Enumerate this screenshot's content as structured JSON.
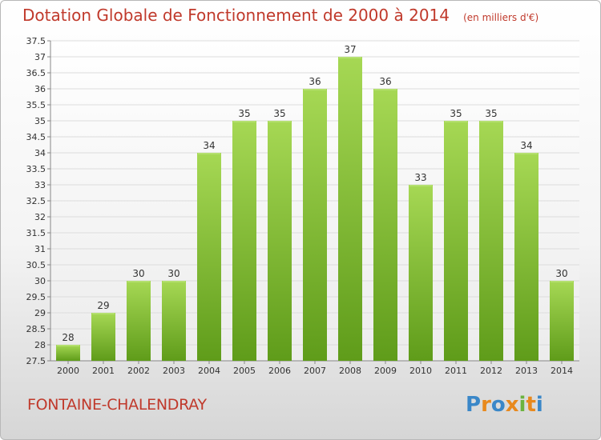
{
  "header": {
    "title": "Dotation Globale de Fonctionnement de 2000 à 2014",
    "subtitle": "(en milliers d'€)"
  },
  "footer": {
    "city": "FONTAINE-CHALENDRAY",
    "logo_text": "Proxiti"
  },
  "colors": {
    "title": "#c0392b",
    "bar_light": "#a6d854",
    "bar_dark": "#5f9c1a",
    "logo": [
      "#3a87c8",
      "#e8891d",
      "#3a87c8",
      "#e8891d",
      "#6cb33f",
      "#e8891d",
      "#3a87c8"
    ]
  },
  "chart_data": {
    "type": "bar",
    "categories": [
      "2000",
      "2001",
      "2002",
      "2003",
      "2004",
      "2005",
      "2006",
      "2007",
      "2008",
      "2009",
      "2010",
      "2011",
      "2012",
      "2013",
      "2014"
    ],
    "values": [
      28,
      29,
      30,
      30,
      34,
      35,
      35,
      36,
      37,
      36,
      33,
      35,
      35,
      34,
      30
    ],
    "data_labels": [
      "28",
      "29",
      "30",
      "30",
      "34",
      "35",
      "35",
      "36",
      "37",
      "36",
      "33",
      "35",
      "35",
      "34",
      "30"
    ],
    "y_ticks": [
      "27.5",
      "28",
      "28.5",
      "29",
      "29.5",
      "30",
      "30.5",
      "31",
      "31.5",
      "32",
      "32.5",
      "33",
      "33.5",
      "34",
      "34.5",
      "35",
      "35.5",
      "36",
      "36.5",
      "37",
      "37.5"
    ],
    "ylim": [
      27.5,
      37.5
    ],
    "grid": true,
    "xlabel": "",
    "ylabel": ""
  }
}
